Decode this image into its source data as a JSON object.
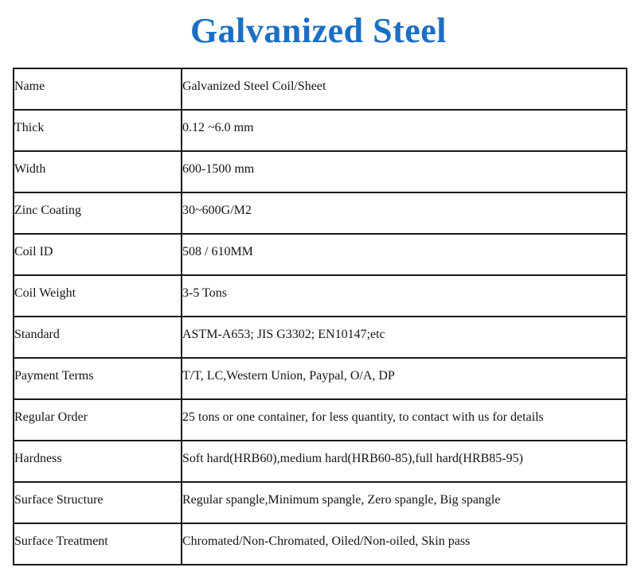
{
  "page": {
    "title": "Galvanized Steel",
    "title_color": "#1b6fc4",
    "border_color": "#1a1a1a"
  },
  "table": {
    "rows": [
      {
        "label": "Name",
        "value": "Galvanized Steel Coil/Sheet"
      },
      {
        "label": "Thick",
        "value": "0.12 ~6.0 mm"
      },
      {
        "label": "Width",
        "value": "600-1500 mm"
      },
      {
        "label": "Zinc Coating",
        "value": "30~600G/M2"
      },
      {
        "label": "Coil ID",
        "value": "508 / 610MM"
      },
      {
        "label": "Coil Weight",
        "value": "3-5 Tons"
      },
      {
        "label": "Standard",
        "value": "ASTM-A653; JIS G3302; EN10147;etc"
      },
      {
        "label": "Payment Terms",
        "value": "T/T, LC,Western Union, Paypal, O/A, DP"
      },
      {
        "label": "Regular Order",
        "value": "25 tons or one container, for less quantity, to contact with us for details"
      },
      {
        "label": "Hardness",
        "value": "Soft hard(HRB60),medium hard(HRB60-85),full hard(HRB85-95)"
      },
      {
        "label": "Surface Structure",
        "value": "Regular spangle,Minimum spangle, Zero spangle, Big spangle"
      },
      {
        "label": "Surface Treatment",
        "value": "Chromated/Non-Chromated, Oiled/Non-oiled, Skin pass"
      }
    ]
  }
}
